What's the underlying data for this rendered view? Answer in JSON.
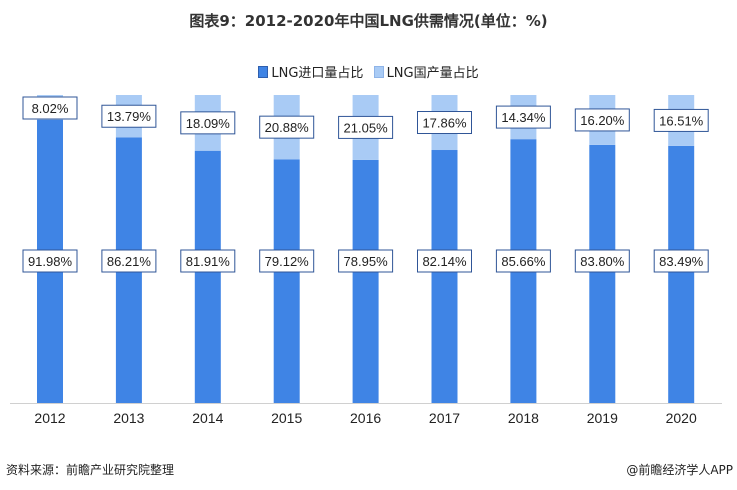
{
  "chart_data": {
    "type": "bar",
    "stacked": true,
    "title": "图表9：2012-2020年中国LNG供需情况(单位：%)",
    "categories": [
      "2012",
      "2013",
      "2014",
      "2015",
      "2016",
      "2017",
      "2018",
      "2019",
      "2020"
    ],
    "series": [
      {
        "name": "LNG进口量占比",
        "color": "#3f84e5",
        "values": [
          91.98,
          86.21,
          81.91,
          79.12,
          78.95,
          82.14,
          85.66,
          83.8,
          83.49
        ]
      },
      {
        "name": "LNG国产量占比",
        "color": "#a9cbf5",
        "values": [
          8.02,
          13.79,
          18.09,
          20.88,
          21.05,
          17.86,
          14.34,
          16.2,
          16.51
        ]
      }
    ],
    "ylim": [
      0,
      100
    ],
    "xlabel": "",
    "ylabel": "",
    "legend": "top-center",
    "grid": false
  },
  "footer": {
    "source": "资料来源：前瞻产业研究院整理",
    "credit": "@前瞻经济学人APP"
  }
}
